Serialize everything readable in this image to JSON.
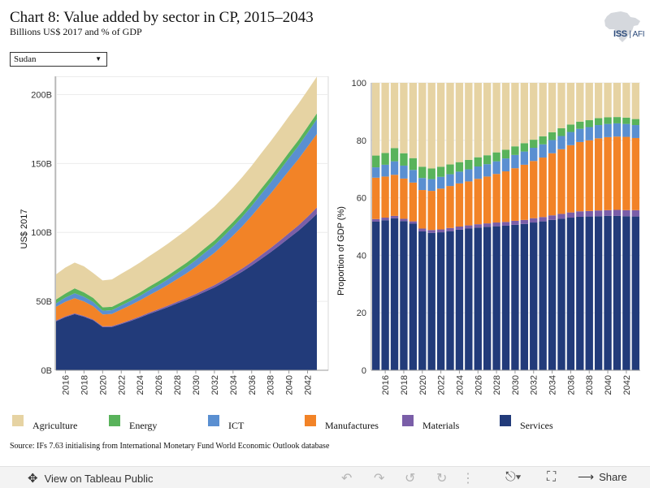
{
  "header": {
    "title": "Chart 8: Value added by sector in CP, 2015–2043",
    "subtitle": "Billions US$ 2017 and % of GDP"
  },
  "logo": {
    "text_main": "ISS",
    "text_sub": "AFI"
  },
  "country_select": {
    "value": "Sudan"
  },
  "colors": {
    "Agriculture": "#e6d3a3",
    "Energy": "#59b35b",
    "ICT": "#5a8fd1",
    "Manufactures": "#f28327",
    "Materials": "#7a5ea8",
    "Services": "#223b7a"
  },
  "legend": {
    "items": [
      {
        "label": "Agriculture",
        "color": "#e6d3a3"
      },
      {
        "label": "Energy",
        "color": "#59b35b"
      },
      {
        "label": "ICT",
        "color": "#5a8fd1"
      },
      {
        "label": "Manufactures",
        "color": "#f28327"
      },
      {
        "label": "Materials",
        "color": "#7a5ea8"
      },
      {
        "label": "Services",
        "color": "#223b7a"
      }
    ]
  },
  "source": "Source: IFs 7.63 initialising from International Monetary Fund World Economic Outlook database",
  "footer": {
    "tableau_link": "View on Tableau Public",
    "share_label": "Share"
  },
  "chart_data": [
    {
      "type": "area",
      "stacked": true,
      "ylabel": "US$ 2017",
      "ytick_labels": [
        "0B",
        "50B",
        "100B",
        "150B",
        "200B"
      ],
      "ylim": [
        0,
        205
      ],
      "xlim": [
        2015,
        2043
      ],
      "xtick_labels": [
        "2016",
        "2018",
        "2020",
        "2022",
        "2024",
        "2026",
        "2028",
        "2030",
        "2032",
        "2034",
        "2036",
        "2038",
        "2040",
        "2042"
      ],
      "x": [
        2015,
        2016,
        2017,
        2018,
        2019,
        2020,
        2021,
        2022,
        2023,
        2024,
        2025,
        2026,
        2027,
        2028,
        2029,
        2030,
        2031,
        2032,
        2033,
        2034,
        2035,
        2036,
        2037,
        2038,
        2039,
        2040,
        2041,
        2042,
        2043
      ],
      "series": [
        {
          "name": "Services",
          "values": [
            35.5,
            38.5,
            40.7,
            38.8,
            36.2,
            31.3,
            31.4,
            33.5,
            35.7,
            38.2,
            40.9,
            43.3,
            45.8,
            48.5,
            51.1,
            54.0,
            57.0,
            60.1,
            63.7,
            67.6,
            71.6,
            76.0,
            80.7,
            85.5,
            90.6,
            95.9,
            101.1,
            107.1,
            113.5
          ]
        },
        {
          "name": "Materials",
          "values": [
            0.6,
            0.6,
            0.6,
            0.6,
            0.6,
            0.6,
            0.6,
            0.7,
            0.8,
            0.8,
            0.9,
            1.0,
            1.1,
            1.2,
            1.3,
            1.4,
            1.6,
            1.7,
            1.9,
            2.1,
            2.3,
            2.5,
            2.8,
            3.0,
            3.3,
            3.6,
            3.9,
            4.2,
            4.6
          ]
        },
        {
          "name": "Manufactures",
          "values": [
            9.9,
            10.6,
            11.0,
            10.5,
            9.6,
            8.6,
            8.9,
            9.9,
            10.8,
            11.7,
            12.7,
            13.8,
            15.0,
            16.4,
            17.9,
            19.6,
            21.5,
            23.4,
            25.6,
            28.0,
            30.6,
            33.5,
            36.5,
            39.4,
            42.4,
            45.3,
            48.0,
            50.9,
            53.3
          ]
        },
        {
          "name": "ICT",
          "values": [
            2.5,
            3.0,
            3.6,
            3.4,
            3.1,
            2.7,
            2.7,
            2.9,
            3.0,
            3.2,
            3.5,
            3.7,
            4.0,
            4.3,
            4.6,
            4.9,
            5.3,
            5.6,
            6.1,
            6.4,
            6.8,
            7.2,
            7.7,
            8.1,
            8.6,
            9.1,
            9.6,
            10.1,
            10.7
          ]
        },
        {
          "name": "Energy",
          "values": [
            2.8,
            3.0,
            3.5,
            3.2,
            2.9,
            2.5,
            2.4,
            2.4,
            2.5,
            2.6,
            2.7,
            2.8,
            2.9,
            3.0,
            3.1,
            3.2,
            3.3,
            3.4,
            3.5,
            3.5,
            3.6,
            3.7,
            3.8,
            3.9,
            4.0,
            4.1,
            4.2,
            4.3,
            4.3
          ]
        },
        {
          "name": "Agriculture",
          "values": [
            18.3,
            18.8,
            18.7,
            18.9,
            18.1,
            19.5,
            19.9,
            20.6,
            21.1,
            21.6,
            22.1,
            22.6,
            23.0,
            23.4,
            23.8,
            24.2,
            24.4,
            24.6,
            24.8,
            25.0,
            25.3,
            25.5,
            25.7,
            25.9,
            26.0,
            26.2,
            26.4,
            26.4,
            26.6
          ]
        }
      ]
    },
    {
      "type": "bar",
      "stacked": true,
      "ylabel": "Proportion of GDP (%)",
      "ytick_labels": [
        "0",
        "20",
        "40",
        "60",
        "80",
        "100"
      ],
      "ylim": [
        0,
        100
      ],
      "xtick_labels": [
        "2016",
        "2018",
        "2020",
        "2022",
        "2024",
        "2026",
        "2028",
        "2030",
        "2032",
        "2034",
        "2036",
        "2038",
        "2040",
        "2042"
      ],
      "categories": [
        "2015",
        "2016",
        "2017",
        "2018",
        "2019",
        "2020",
        "2021",
        "2022",
        "2023",
        "2024",
        "2025",
        "2026",
        "2027",
        "2028",
        "2029",
        "2030",
        "2031",
        "2032",
        "2033",
        "2034",
        "2035",
        "2036",
        "2037",
        "2038",
        "2039",
        "2040",
        "2041",
        "2042",
        "2043"
      ],
      "series": [
        {
          "name": "Services",
          "values": [
            51.7,
            52.2,
            52.9,
            51.9,
            51.0,
            48.3,
            47.8,
            48.0,
            48.4,
            48.9,
            49.3,
            49.6,
            49.9,
            50.1,
            50.3,
            50.6,
            50.9,
            51.4,
            51.8,
            52.3,
            52.7,
            53.1,
            53.4,
            53.5,
            53.6,
            53.7,
            53.7,
            53.6,
            53.5
          ]
        },
        {
          "name": "Materials",
          "values": [
            0.9,
            0.9,
            0.8,
            0.8,
            0.8,
            1.0,
            1.0,
            1.0,
            1.1,
            1.1,
            1.1,
            1.2,
            1.2,
            1.3,
            1.3,
            1.4,
            1.4,
            1.5,
            1.5,
            1.6,
            1.7,
            1.8,
            1.9,
            1.9,
            2.0,
            2.0,
            2.1,
            2.1,
            2.2
          ]
        },
        {
          "name": "Manufactures",
          "values": [
            14.4,
            14.3,
            14.3,
            14.0,
            13.5,
            13.4,
            13.6,
            14.2,
            14.6,
            15.0,
            15.3,
            15.8,
            16.3,
            16.9,
            17.6,
            18.3,
            19.2,
            19.9,
            20.7,
            21.6,
            22.5,
            23.4,
            24.1,
            24.6,
            25.1,
            25.4,
            25.5,
            25.5,
            25.1
          ]
        },
        {
          "name": "ICT",
          "values": [
            3.6,
            4.1,
            4.7,
            4.5,
            4.4,
            4.2,
            4.1,
            4.1,
            4.1,
            4.1,
            4.2,
            4.3,
            4.3,
            4.4,
            4.5,
            4.6,
            4.6,
            4.6,
            4.6,
            4.6,
            4.6,
            4.6,
            4.6,
            4.6,
            4.6,
            4.6,
            4.6,
            4.5,
            4.5
          ]
        },
        {
          "name": "Energy",
          "values": [
            4.1,
            4.1,
            4.6,
            4.3,
            4.1,
            3.9,
            3.7,
            3.5,
            3.4,
            3.3,
            3.3,
            3.2,
            3.1,
            3.1,
            3.0,
            3.0,
            2.9,
            2.8,
            2.8,
            2.7,
            2.7,
            2.6,
            2.5,
            2.4,
            2.4,
            2.3,
            2.2,
            2.2,
            2.1
          ]
        },
        {
          "name": "Agriculture",
          "values": [
            25.3,
            24.4,
            22.7,
            24.5,
            26.2,
            29.2,
            29.8,
            29.2,
            28.4,
            27.6,
            26.8,
            25.9,
            25.2,
            24.2,
            23.3,
            22.1,
            21.0,
            19.8,
            18.6,
            17.2,
            15.8,
            14.5,
            13.5,
            13.0,
            12.3,
            12.0,
            11.9,
            12.1,
            12.6
          ]
        }
      ]
    }
  ]
}
